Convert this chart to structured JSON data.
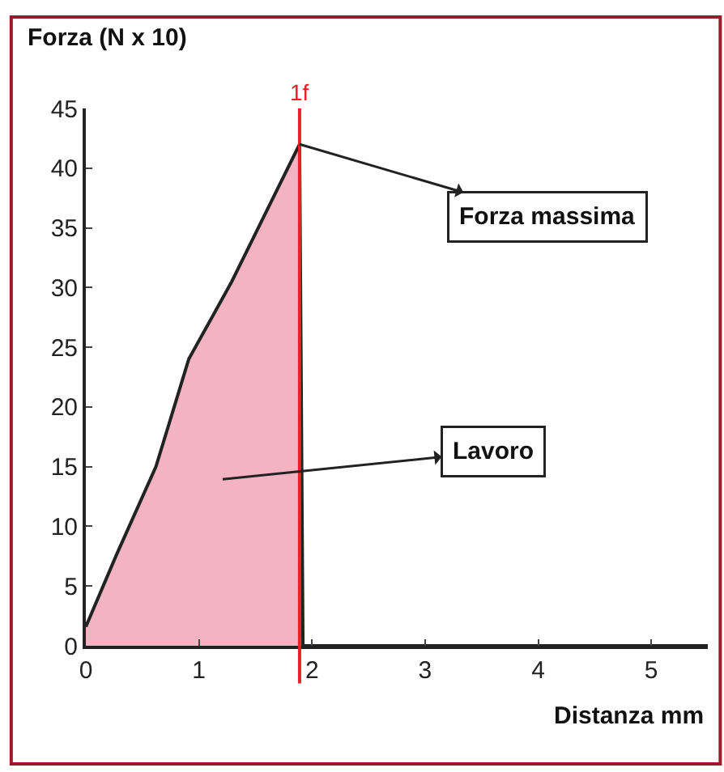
{
  "chart_data": {
    "type": "area",
    "xlabel": "Distanza mm",
    "ylabel": "Forza (N x 10)",
    "x": [
      0,
      0.27,
      0.62,
      0.91,
      1.29,
      1.89,
      1.92,
      5.5
    ],
    "series": [
      {
        "color": "#f4b3c2",
        "values": [
          1.6,
          7.6,
          15,
          24,
          30.5,
          42,
          0,
          0
        ]
      }
    ],
    "xlim": [
      0,
      5.5
    ],
    "xticks": [
      0,
      1,
      2,
      3,
      4,
      5
    ],
    "ylim": [
      0,
      45
    ],
    "yticks": [
      0,
      5,
      10,
      15,
      20,
      25,
      30,
      35,
      40,
      45
    ],
    "ref_lines": [
      {
        "axis": "x",
        "value": 1.89,
        "label": "1f",
        "color": "#e8202a"
      }
    ],
    "annotations": [
      {
        "text": "Forza massima",
        "x": 1.89,
        "y": 42
      },
      "Lavoro"
    ]
  }
}
